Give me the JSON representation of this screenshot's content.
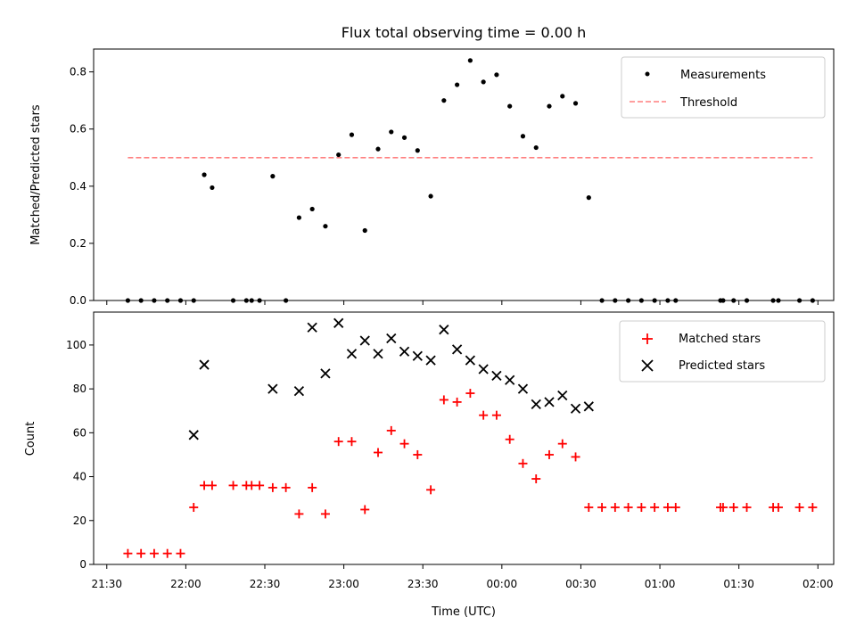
{
  "chart_data": [
    {
      "type": "scatter",
      "title": "Flux total observing time = 0.00 h",
      "ylabel": "Matched/Predicted stars",
      "xlabel": "",
      "ylim": [
        0,
        0.88
      ],
      "yticks": [
        0.0,
        0.2,
        0.4,
        0.6,
        0.8
      ],
      "ytick_labels": [
        "0.0",
        "0.2",
        "0.4",
        "0.6",
        "0.8"
      ],
      "legend": "top-right",
      "grid": false,
      "series": [
        {
          "name": "Measurements",
          "kind": "dot",
          "color": "#000000",
          "x": [
            "21:38",
            "21:43",
            "21:48",
            "21:53",
            "21:58",
            "22:03",
            "22:07",
            "22:10",
            "22:18",
            "22:23",
            "22:25",
            "22:28",
            "22:33",
            "22:38",
            "22:43",
            "22:48",
            "22:53",
            "22:58",
            "23:03",
            "23:08",
            "23:13",
            "23:18",
            "23:23",
            "23:28",
            "23:33",
            "23:38",
            "23:43",
            "23:48",
            "23:53",
            "23:58",
            "00:03",
            "00:08",
            "00:13",
            "00:18",
            "00:23",
            "00:28",
            "00:33",
            "00:38",
            "00:43",
            "00:48",
            "00:53",
            "00:58",
            "01:03",
            "01:06",
            "01:23",
            "01:24",
            "01:28",
            "01:33",
            "01:43",
            "01:45",
            "01:53",
            "01:58"
          ],
          "y": [
            0.0,
            0.0,
            0.0,
            0.0,
            0.0,
            0.0,
            0.44,
            0.395,
            0.0,
            0.0,
            0.0,
            0.0,
            0.435,
            0.0,
            0.29,
            0.32,
            0.26,
            0.51,
            0.58,
            0.245,
            0.53,
            0.59,
            0.57,
            0.525,
            0.365,
            0.7,
            0.755,
            0.84,
            0.765,
            0.79,
            0.68,
            0.575,
            0.535,
            0.68,
            0.715,
            0.69,
            0.36,
            0.0,
            0.0,
            0.0,
            0.0,
            0.0,
            0.0,
            0.0,
            0.0,
            0.0,
            0.0,
            0.0,
            0.0,
            0.0,
            0.0,
            0.0
          ]
        },
        {
          "name": "Threshold",
          "kind": "dashed-line",
          "color": "#ff7f7f",
          "x": [
            "21:38",
            "01:58"
          ],
          "y": [
            0.5,
            0.5
          ]
        }
      ]
    },
    {
      "type": "scatter",
      "title": "",
      "xlabel": "Time (UTC)",
      "ylabel": "Count",
      "ylim": [
        0,
        115
      ],
      "yticks": [
        0,
        20,
        40,
        60,
        80,
        100
      ],
      "ytick_labels": [
        "0",
        "20",
        "40",
        "60",
        "80",
        "100"
      ],
      "xlim": [
        "21:25",
        "02:06"
      ],
      "xticks": [
        "21:30",
        "22:00",
        "22:30",
        "23:00",
        "23:30",
        "00:00",
        "00:30",
        "01:00",
        "01:30",
        "02:00"
      ],
      "legend": "top-right",
      "grid": false,
      "series": [
        {
          "name": "Matched stars",
          "kind": "plus",
          "color": "#ff0000",
          "x": [
            "21:38",
            "21:43",
            "21:48",
            "21:53",
            "21:58",
            "22:03",
            "22:07",
            "22:10",
            "22:18",
            "22:23",
            "22:25",
            "22:28",
            "22:33",
            "22:38",
            "22:43",
            "22:48",
            "22:53",
            "22:58",
            "23:03",
            "23:08",
            "23:13",
            "23:18",
            "23:23",
            "23:28",
            "23:33",
            "23:38",
            "23:43",
            "23:48",
            "23:53",
            "23:58",
            "00:03",
            "00:08",
            "00:13",
            "00:18",
            "00:23",
            "00:28",
            "00:33",
            "00:38",
            "00:43",
            "00:48",
            "00:53",
            "00:58",
            "01:03",
            "01:06",
            "01:23",
            "01:24",
            "01:28",
            "01:33",
            "01:43",
            "01:45",
            "01:53",
            "01:58"
          ],
          "y": [
            5,
            5,
            5,
            5,
            5,
            26,
            36,
            36,
            36,
            36,
            36,
            36,
            35,
            35,
            23,
            35,
            23,
            56,
            56,
            25,
            51,
            61,
            55,
            50,
            34,
            75,
            74,
            78,
            68,
            68,
            57,
            46,
            39,
            50,
            55,
            49,
            26,
            26,
            26,
            26,
            26,
            26,
            26,
            26,
            26,
            26,
            26,
            26,
            26,
            26,
            26,
            26
          ]
        },
        {
          "name": "Predicted stars",
          "kind": "x",
          "color": "#000000",
          "x": [
            "22:03",
            "22:07",
            "22:33",
            "22:43",
            "22:48",
            "22:53",
            "22:58",
            "23:03",
            "23:08",
            "23:13",
            "23:18",
            "23:23",
            "23:28",
            "23:33",
            "23:38",
            "23:43",
            "23:48",
            "23:53",
            "23:58",
            "00:03",
            "00:08",
            "00:13",
            "00:18",
            "00:23",
            "00:28",
            "00:33"
          ],
          "y": [
            59,
            91,
            80,
            79,
            108,
            87,
            110,
            96,
            102,
            96,
            103,
            97,
            95,
            93,
            107,
            98,
            93,
            89,
            86,
            84,
            80,
            73,
            74,
            77,
            71,
            72
          ]
        }
      ]
    }
  ]
}
